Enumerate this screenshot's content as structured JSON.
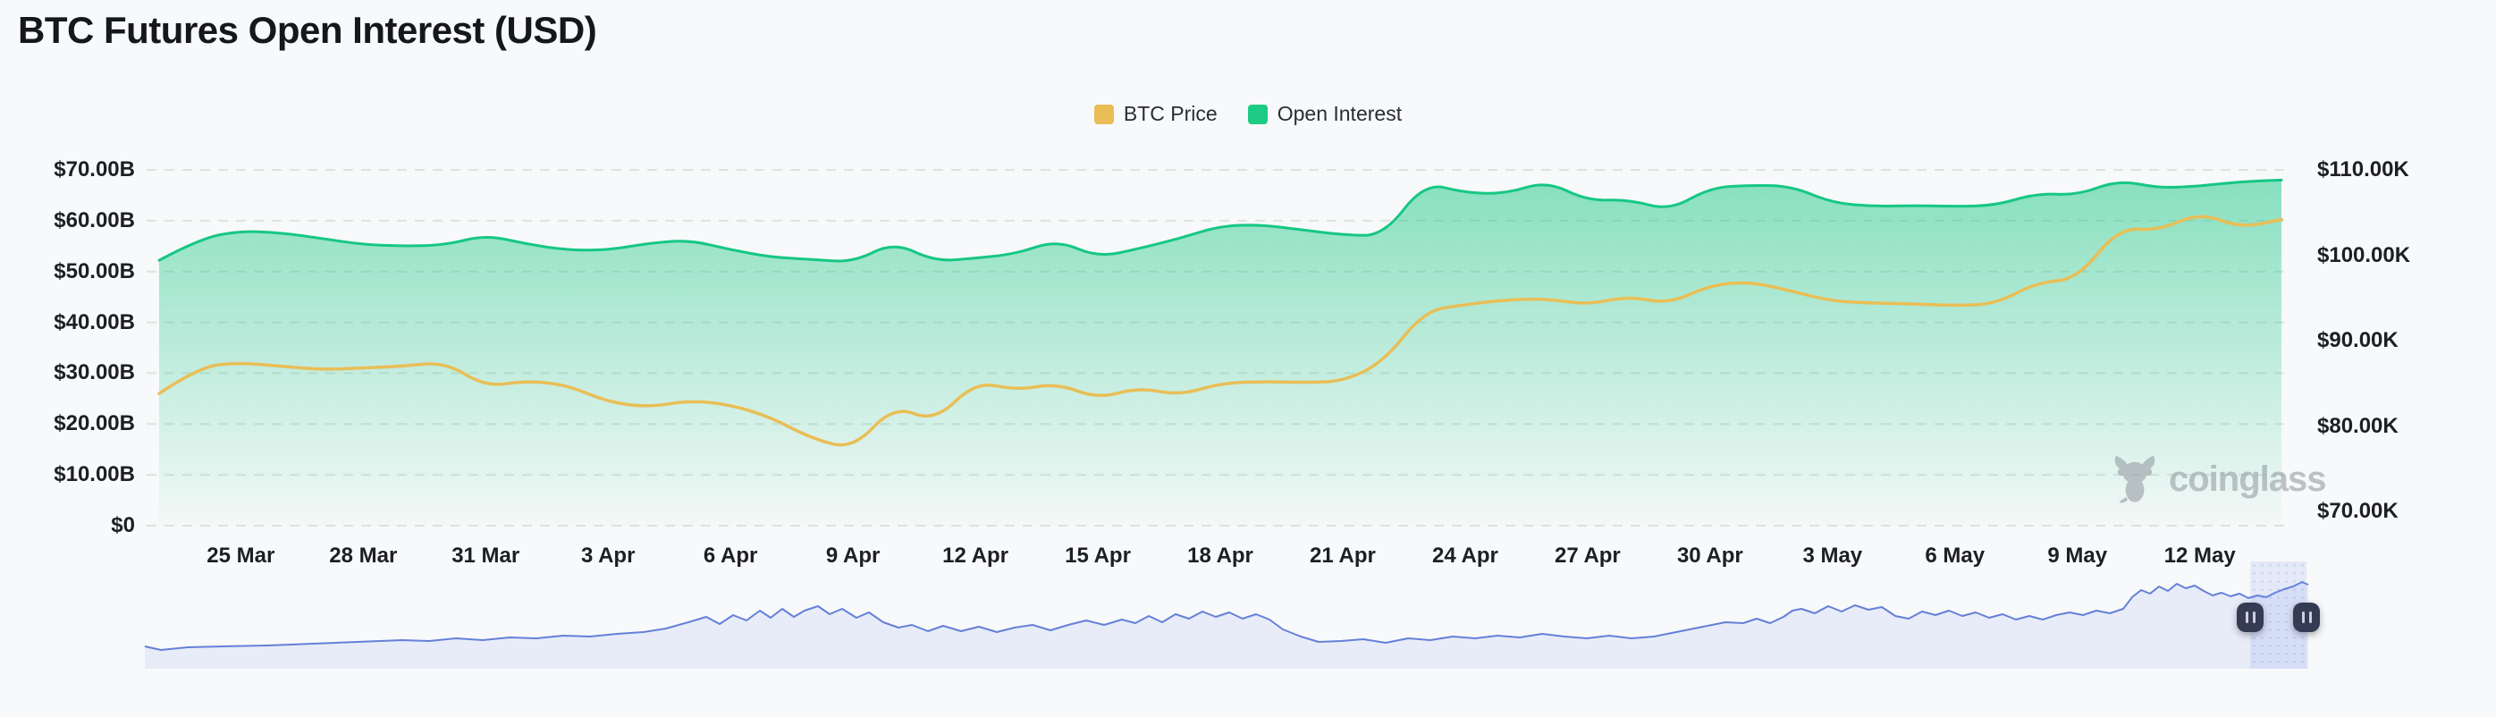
{
  "header": {
    "title": "BTC Futures Open Interest (USD)"
  },
  "legend": {
    "items": [
      {
        "label": "BTC Price",
        "color": "#e9be56"
      },
      {
        "label": "Open Interest",
        "color": "#1ecb84"
      }
    ]
  },
  "watermark": {
    "brand": "coinglass",
    "icon": "coinglass-bull-icon"
  },
  "chart_data": {
    "type": "area",
    "title": "BTC Futures Open Interest (USD)",
    "grid": "dashed-horizontal",
    "legend_position": "top-center",
    "x": [
      "23 Mar",
      "24 Mar",
      "25 Mar",
      "26 Mar",
      "27 Mar",
      "28 Mar",
      "29 Mar",
      "30 Mar",
      "31 Mar",
      "1 Apr",
      "2 Apr",
      "3 Apr",
      "4 Apr",
      "5 Apr",
      "6 Apr",
      "7 Apr",
      "8 Apr",
      "9 Apr",
      "10 Apr",
      "11 Apr",
      "12 Apr",
      "13 Apr",
      "14 Apr",
      "15 Apr",
      "16 Apr",
      "17 Apr",
      "18 Apr",
      "19 Apr",
      "20 Apr",
      "21 Apr",
      "22 Apr",
      "23 Apr",
      "24 Apr",
      "25 Apr",
      "26 Apr",
      "27 Apr",
      "28 Apr",
      "29 Apr",
      "30 Apr",
      "1 May",
      "2 May",
      "3 May",
      "4 May",
      "5 May",
      "6 May",
      "7 May",
      "8 May",
      "9 May",
      "10 May",
      "11 May",
      "12 May",
      "13 May",
      "14 May"
    ],
    "series": [
      {
        "name": "Open Interest",
        "axis": "left",
        "unit": "USD billions",
        "color": "#16c784",
        "style": "area",
        "values": [
          52.2,
          56.5,
          58.0,
          57.6,
          56.5,
          55.3,
          55.0,
          55.2,
          57.2,
          55.4,
          54.2,
          54.2,
          55.6,
          56.2,
          54.3,
          52.8,
          52.4,
          51.8,
          55.8,
          52.0,
          52.6,
          53.5,
          56.2,
          52.8,
          54.5,
          56.5,
          59.0,
          59.2,
          58.2,
          57.2,
          57.0,
          67.5,
          65.5,
          65.3,
          67.8,
          63.9,
          64.2,
          62.0,
          66.5,
          67.0,
          66.8,
          63.5,
          62.8,
          63.0,
          62.8,
          63.0,
          65.4,
          65.0,
          68.0,
          66.4,
          66.8,
          67.7,
          68.0
        ]
      },
      {
        "name": "BTC Price",
        "axis": "right",
        "unit": "USD thousands",
        "color": "#e9be56",
        "style": "line",
        "values": [
          83.8,
          87.0,
          87.4,
          87.0,
          86.6,
          86.8,
          87.0,
          87.5,
          84.6,
          85.3,
          84.8,
          82.8,
          82.2,
          83.0,
          82.5,
          81.0,
          78.5,
          77.3,
          82.4,
          80.5,
          85.2,
          84.2,
          85.0,
          83.2,
          84.5,
          83.6,
          85.0,
          85.2,
          85.1,
          85.2,
          87.5,
          93.5,
          94.2,
          94.8,
          94.9,
          94.2,
          95.2,
          94.3,
          96.5,
          96.9,
          95.8,
          94.6,
          94.4,
          94.3,
          94.1,
          94.3,
          96.8,
          97.2,
          103.2,
          102.9,
          105.0,
          103.2,
          104.2
        ]
      }
    ],
    "left_axis": {
      "min": 0,
      "max": 70,
      "tick_values": [
        70,
        60,
        50,
        40,
        30,
        20,
        10,
        0
      ],
      "tick_labels": [
        "$70.00B",
        "$60.00B",
        "$50.00B",
        "$40.00B",
        "$30.00B",
        "$20.00B",
        "$10.00B",
        "$0"
      ]
    },
    "right_axis": {
      "min": 70,
      "max": 110,
      "tick_values": [
        110,
        100,
        90,
        80,
        70
      ],
      "tick_labels": [
        "$110.00K",
        "$100.00K",
        "$90.00K",
        "$80.00K",
        "$70.00K"
      ]
    },
    "x_tick_labels": [
      "25 Mar",
      "28 Mar",
      "31 Mar",
      "3 Apr",
      "6 Apr",
      "9 Apr",
      "12 Apr",
      "15 Apr",
      "18 Apr",
      "21 Apr",
      "24 Apr",
      "27 Apr",
      "30 Apr",
      "3 May",
      "6 May",
      "9 May",
      "12 May"
    ],
    "x_tick_day_indices": [
      2,
      5,
      8,
      11,
      14,
      17,
      20,
      23,
      26,
      29,
      32,
      35,
      38,
      41,
      44,
      47,
      50
    ]
  },
  "navigator": {
    "line_color": "#6580d8",
    "fill_color": "#e7ecf8",
    "selection_start_pct": 97.3,
    "selection_end_pct": 99.9,
    "handle_icon": "pause-bars",
    "points": [
      [
        0,
        78
      ],
      [
        18,
        82
      ],
      [
        48,
        79
      ],
      [
        88,
        78
      ],
      [
        138,
        77
      ],
      [
        188,
        75
      ],
      [
        238,
        73
      ],
      [
        288,
        71
      ],
      [
        318,
        72
      ],
      [
        348,
        69
      ],
      [
        378,
        71
      ],
      [
        408,
        68
      ],
      [
        438,
        69
      ],
      [
        468,
        66
      ],
      [
        498,
        67
      ],
      [
        528,
        64
      ],
      [
        558,
        62
      ],
      [
        583,
        58
      ],
      [
        608,
        51
      ],
      [
        628,
        45
      ],
      [
        643,
        53
      ],
      [
        658,
        43
      ],
      [
        673,
        49
      ],
      [
        688,
        38
      ],
      [
        700,
        46
      ],
      [
        713,
        36
      ],
      [
        726,
        45
      ],
      [
        738,
        38
      ],
      [
        753,
        33
      ],
      [
        766,
        42
      ],
      [
        780,
        36
      ],
      [
        796,
        46
      ],
      [
        810,
        40
      ],
      [
        826,
        51
      ],
      [
        843,
        57
      ],
      [
        858,
        54
      ],
      [
        876,
        61
      ],
      [
        893,
        55
      ],
      [
        913,
        61
      ],
      [
        933,
        56
      ],
      [
        953,
        62
      ],
      [
        973,
        57
      ],
      [
        993,
        54
      ],
      [
        1013,
        60
      ],
      [
        1033,
        54
      ],
      [
        1053,
        49
      ],
      [
        1073,
        54
      ],
      [
        1093,
        48
      ],
      [
        1108,
        52
      ],
      [
        1123,
        44
      ],
      [
        1138,
        51
      ],
      [
        1153,
        42
      ],
      [
        1168,
        47
      ],
      [
        1183,
        39
      ],
      [
        1198,
        45
      ],
      [
        1213,
        40
      ],
      [
        1228,
        47
      ],
      [
        1243,
        42
      ],
      [
        1258,
        48
      ],
      [
        1273,
        59
      ],
      [
        1293,
        67
      ],
      [
        1313,
        73
      ],
      [
        1338,
        72
      ],
      [
        1363,
        70
      ],
      [
        1388,
        74
      ],
      [
        1413,
        69
      ],
      [
        1438,
        71
      ],
      [
        1463,
        67
      ],
      [
        1488,
        69
      ],
      [
        1513,
        66
      ],
      [
        1538,
        68
      ],
      [
        1563,
        64
      ],
      [
        1588,
        67
      ],
      [
        1613,
        69
      ],
      [
        1638,
        66
      ],
      [
        1663,
        69
      ],
      [
        1688,
        67
      ],
      [
        1708,
        63
      ],
      [
        1728,
        59
      ],
      [
        1748,
        55
      ],
      [
        1768,
        51
      ],
      [
        1788,
        52
      ],
      [
        1803,
        47
      ],
      [
        1818,
        52
      ],
      [
        1833,
        45
      ],
      [
        1843,
        38
      ],
      [
        1853,
        36
      ],
      [
        1868,
        41
      ],
      [
        1883,
        33
      ],
      [
        1898,
        39
      ],
      [
        1913,
        32
      ],
      [
        1928,
        37
      ],
      [
        1943,
        34
      ],
      [
        1958,
        44
      ],
      [
        1973,
        47
      ],
      [
        1988,
        39
      ],
      [
        2003,
        43
      ],
      [
        2018,
        38
      ],
      [
        2033,
        44
      ],
      [
        2048,
        40
      ],
      [
        2063,
        46
      ],
      [
        2078,
        42
      ],
      [
        2093,
        48
      ],
      [
        2108,
        44
      ],
      [
        2123,
        48
      ],
      [
        2138,
        43
      ],
      [
        2153,
        40
      ],
      [
        2168,
        43
      ],
      [
        2183,
        38
      ],
      [
        2198,
        41
      ],
      [
        2213,
        36
      ],
      [
        2223,
        23
      ],
      [
        2233,
        15
      ],
      [
        2243,
        19
      ],
      [
        2253,
        11
      ],
      [
        2263,
        16
      ],
      [
        2273,
        8
      ],
      [
        2283,
        13
      ],
      [
        2293,
        10
      ],
      [
        2303,
        16
      ],
      [
        2313,
        21
      ],
      [
        2323,
        18
      ],
      [
        2333,
        22
      ],
      [
        2343,
        19
      ],
      [
        2353,
        24
      ],
      [
        2363,
        21
      ],
      [
        2373,
        23
      ],
      [
        2383,
        18
      ],
      [
        2393,
        14
      ],
      [
        2403,
        11
      ],
      [
        2413,
        6
      ],
      [
        2420,
        9
      ]
    ]
  }
}
